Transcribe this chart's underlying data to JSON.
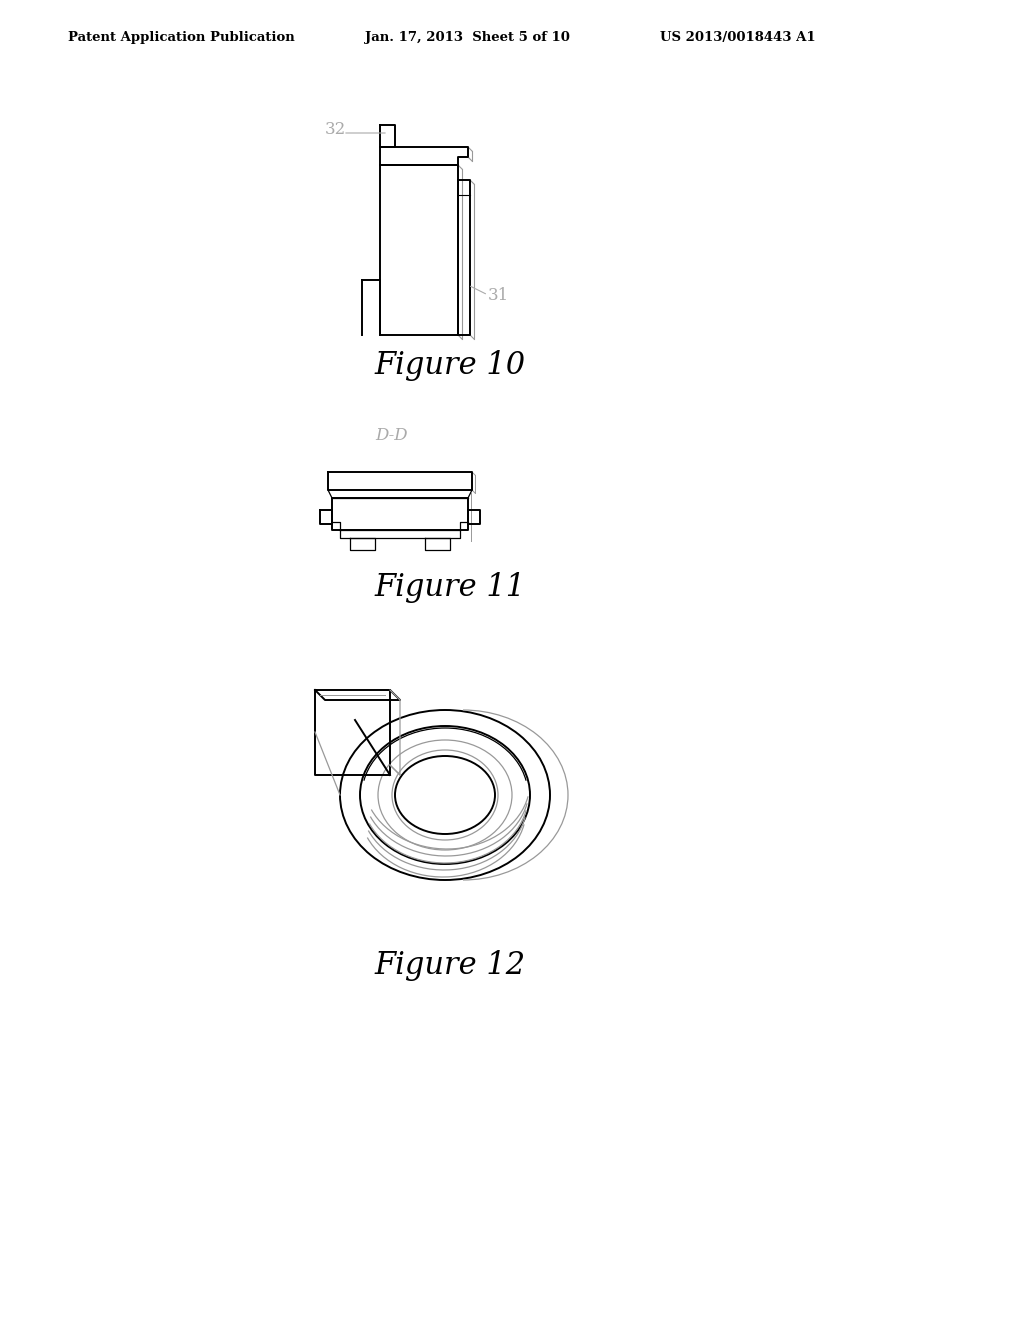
{
  "background_color": "#ffffff",
  "header_text": "Patent Application Publication",
  "header_date": "Jan. 17, 2013  Sheet 5 of 10",
  "header_patent": "US 2013/0018443 A1",
  "fig10_label": "Figure 10",
  "fig11_label": "Figure 11",
  "fig12_label": "Figure 12",
  "label_32": "32",
  "label_31": "31",
  "label_DD": "D-D",
  "line_color": "#000000",
  "gray_color": "#aaaaaa",
  "shadow_color": "#999999"
}
